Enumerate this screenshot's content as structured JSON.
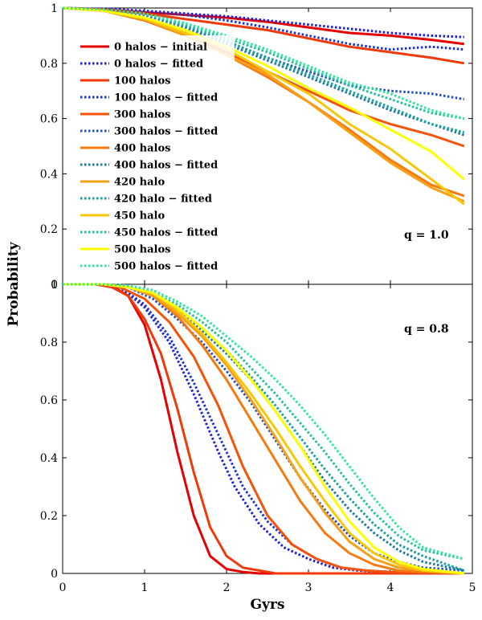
{
  "chart_data": [
    {
      "type": "line",
      "panel": "top",
      "annotation": "q = 1.0",
      "ylabel": "Probability",
      "xlim": [
        0,
        5
      ],
      "ylim": [
        0,
        1
      ],
      "yticks": [
        "0",
        "0.2",
        "0.4",
        "0.6",
        "0.8",
        "1"
      ],
      "grid": false,
      "legend": "top-left",
      "series": [
        {
          "name": "0 halos  −  initial",
          "color": "#e60000",
          "style": "solid",
          "x": [
            0,
            0.5,
            1,
            1.5,
            2,
            2.5,
            3,
            3.5,
            4,
            4.5,
            4.9
          ],
          "y": [
            1,
            0.995,
            0.985,
            0.975,
            0.965,
            0.95,
            0.93,
            0.91,
            0.9,
            0.885,
            0.87
          ]
        },
        {
          "name": "0 halos  −  fitted",
          "color": "#1f1fd6",
          "style": "dotted",
          "x": [
            0,
            0.5,
            1,
            1.5,
            2,
            2.5,
            3,
            3.5,
            4,
            4.5,
            4.9
          ],
          "y": [
            1,
            0.997,
            0.99,
            0.98,
            0.97,
            0.955,
            0.94,
            0.925,
            0.91,
            0.9,
            0.895
          ]
        },
        {
          "name": "100 halos",
          "color": "#f03a0a",
          "style": "solid",
          "x": [
            0,
            0.5,
            1,
            1.5,
            2,
            2.5,
            3,
            3.5,
            4,
            4.5,
            4.9
          ],
          "y": [
            1,
            0.995,
            0.98,
            0.96,
            0.94,
            0.92,
            0.89,
            0.86,
            0.84,
            0.82,
            0.8
          ]
        },
        {
          "name": "100 halos  −  fitted",
          "color": "#1a33d0",
          "style": "dotted",
          "x": [
            0,
            0.5,
            1,
            1.5,
            2,
            2.5,
            3,
            3.5,
            4,
            4.5,
            4.9
          ],
          "y": [
            1,
            0.997,
            0.99,
            0.975,
            0.955,
            0.93,
            0.9,
            0.87,
            0.85,
            0.86,
            0.85
          ]
        },
        {
          "name": "300 halos",
          "color": "#f5520a",
          "style": "solid",
          "x": [
            0,
            0.5,
            1,
            1.5,
            2,
            2.5,
            3,
            3.5,
            4,
            4.5,
            4.9
          ],
          "y": [
            1,
            0.99,
            0.96,
            0.9,
            0.84,
            0.77,
            0.7,
            0.63,
            0.58,
            0.54,
            0.5
          ]
        },
        {
          "name": "300 halos  −  fitted",
          "color": "#2050c8",
          "style": "dotted",
          "x": [
            0,
            0.5,
            1,
            1.5,
            2,
            2.5,
            3,
            3.5,
            4,
            4.5,
            4.9
          ],
          "y": [
            1,
            0.995,
            0.975,
            0.93,
            0.88,
            0.82,
            0.77,
            0.72,
            0.7,
            0.69,
            0.67
          ]
        },
        {
          "name": "400 halos",
          "color": "#f57a10",
          "style": "solid",
          "x": [
            0,
            0.5,
            1,
            1.5,
            2,
            2.5,
            3,
            3.5,
            4,
            4.5,
            4.9
          ],
          "y": [
            1,
            0.99,
            0.955,
            0.9,
            0.83,
            0.75,
            0.66,
            0.56,
            0.45,
            0.36,
            0.32
          ]
        },
        {
          "name": "400 halos  −  fitted",
          "color": "#1a7aa0",
          "style": "dotted",
          "x": [
            0,
            0.5,
            1,
            1.5,
            2,
            2.5,
            3,
            3.5,
            4,
            4.5,
            4.9
          ],
          "y": [
            1,
            0.995,
            0.975,
            0.93,
            0.87,
            0.81,
            0.75,
            0.69,
            0.63,
            0.58,
            0.54
          ]
        },
        {
          "name": "420 halo",
          "color": "#f7a015",
          "style": "solid",
          "x": [
            0,
            0.5,
            1,
            1.5,
            2,
            2.5,
            3,
            3.5,
            4,
            4.5,
            4.9
          ],
          "y": [
            1,
            0.99,
            0.96,
            0.9,
            0.83,
            0.76,
            0.66,
            0.55,
            0.44,
            0.35,
            0.3
          ]
        },
        {
          "name": "420 halo  −  fitted",
          "color": "#13a0a0",
          "style": "dotted",
          "x": [
            0,
            0.5,
            1,
            1.5,
            2,
            2.5,
            3,
            3.5,
            4,
            4.5,
            4.9
          ],
          "y": [
            1,
            0.995,
            0.975,
            0.935,
            0.88,
            0.82,
            0.76,
            0.7,
            0.64,
            0.58,
            0.55
          ]
        },
        {
          "name": "450 halo",
          "color": "#f7c80a",
          "style": "solid",
          "x": [
            0,
            0.5,
            1,
            1.5,
            2,
            2.5,
            3,
            3.5,
            4,
            4.5,
            4.9
          ],
          "y": [
            1,
            0.99,
            0.96,
            0.91,
            0.85,
            0.77,
            0.69,
            0.58,
            0.49,
            0.38,
            0.29
          ]
        },
        {
          "name": "450 halos  −  fitted",
          "color": "#20c0a0",
          "style": "dotted",
          "x": [
            0,
            0.5,
            1,
            1.5,
            2,
            2.5,
            3,
            3.5,
            4,
            4.5,
            4.9
          ],
          "y": [
            1,
            0.995,
            0.98,
            0.94,
            0.89,
            0.84,
            0.78,
            0.72,
            0.67,
            0.62,
            0.6
          ]
        },
        {
          "name": "500 halos",
          "color": "#ffff00",
          "style": "solid",
          "x": [
            0,
            0.5,
            1,
            1.5,
            2,
            2.5,
            3,
            3.5,
            4,
            4.5,
            4.9
          ],
          "y": [
            1,
            0.99,
            0.965,
            0.92,
            0.86,
            0.79,
            0.71,
            0.64,
            0.56,
            0.48,
            0.38
          ]
        },
        {
          "name": "500 halos  −  fitted",
          "color": "#2ee89a",
          "style": "dotted",
          "x": [
            0,
            0.5,
            1,
            1.5,
            2,
            2.5,
            3,
            3.5,
            4,
            4.5,
            4.9
          ],
          "y": [
            1,
            0.995,
            0.98,
            0.945,
            0.9,
            0.85,
            0.79,
            0.73,
            0.69,
            0.63,
            0.6
          ]
        }
      ]
    },
    {
      "type": "line",
      "panel": "bottom",
      "annotation": "q = 0.8",
      "xlabel": "Gyrs",
      "ylabel": "Probability",
      "xlim": [
        0,
        5
      ],
      "ylim": [
        0,
        1
      ],
      "xticks": [
        "0",
        "1",
        "2",
        "3",
        "4",
        "5"
      ],
      "yticks": [
        "0",
        "0.2",
        "0.4",
        "0.6",
        "0.8",
        "1"
      ],
      "grid": false,
      "series": [
        {
          "name": "0 halos  −  initial",
          "color": "#e60000",
          "style": "solid",
          "x": [
            0,
            0.4,
            0.6,
            0.8,
            1,
            1.2,
            1.4,
            1.6,
            1.8,
            2,
            2.2,
            2.4,
            2.6,
            3,
            4,
            4.9
          ],
          "y": [
            1,
            1,
            0.995,
            0.96,
            0.86,
            0.67,
            0.42,
            0.2,
            0.06,
            0.015,
            0.005,
            0,
            0,
            0,
            0,
            0
          ]
        },
        {
          "name": "0 halos  −  fitted",
          "color": "#1f1fd6",
          "style": "dotted",
          "x": [
            0,
            0.5,
            0.7,
            1,
            1.3,
            1.6,
            1.9,
            2.1,
            2.4,
            2.7,
            3,
            3.3,
            3.6,
            4,
            4.9
          ],
          "y": [
            1,
            1,
            0.99,
            0.92,
            0.8,
            0.62,
            0.42,
            0.3,
            0.17,
            0.09,
            0.05,
            0.02,
            0.01,
            0.005,
            0
          ]
        },
        {
          "name": "100 halos",
          "color": "#f03a0a",
          "style": "solid",
          "x": [
            0,
            0.4,
            0.6,
            0.8,
            1,
            1.2,
            1.4,
            1.6,
            1.8,
            2,
            2.2,
            2.4,
            2.6,
            2.8,
            3,
            4,
            4.9
          ],
          "y": [
            1,
            1,
            0.99,
            0.96,
            0.88,
            0.76,
            0.57,
            0.35,
            0.16,
            0.06,
            0.02,
            0.01,
            0,
            0,
            0,
            0,
            0
          ]
        },
        {
          "name": "100 halos  −  fitted",
          "color": "#1a33d0",
          "style": "dotted",
          "x": [
            0,
            0.5,
            0.7,
            1,
            1.3,
            1.6,
            1.9,
            2.2,
            2.5,
            2.8,
            3.1,
            3.4,
            3.7,
            4,
            4.9
          ],
          "y": [
            1,
            1,
            0.99,
            0.93,
            0.82,
            0.66,
            0.48,
            0.3,
            0.18,
            0.1,
            0.05,
            0.02,
            0.01,
            0.005,
            0
          ]
        },
        {
          "name": "300 halos",
          "color": "#f5520a",
          "style": "solid",
          "x": [
            0,
            0.5,
            0.7,
            1,
            1.3,
            1.6,
            1.9,
            2.2,
            2.5,
            2.8,
            3.1,
            3.4,
            3.7,
            4,
            4.9
          ],
          "y": [
            1,
            1,
            0.99,
            0.95,
            0.87,
            0.75,
            0.58,
            0.37,
            0.2,
            0.1,
            0.05,
            0.02,
            0.01,
            0.005,
            0
          ]
        },
        {
          "name": "300 halos  −  fitted",
          "color": "#2050c8",
          "style": "dotted",
          "x": [
            0,
            0.5,
            0.8,
            1.1,
            1.4,
            1.7,
            2,
            2.3,
            2.6,
            2.9,
            3.2,
            3.5,
            3.8,
            4.1,
            4.4,
            4.9
          ],
          "y": [
            1,
            1,
            0.99,
            0.95,
            0.88,
            0.8,
            0.7,
            0.59,
            0.46,
            0.33,
            0.22,
            0.13,
            0.07,
            0.04,
            0.02,
            0.01
          ]
        },
        {
          "name": "400 halos",
          "color": "#f57a10",
          "style": "solid",
          "x": [
            0,
            0.5,
            0.8,
            1.1,
            1.4,
            1.7,
            2,
            2.3,
            2.6,
            2.9,
            3.2,
            3.5,
            3.8,
            4.1,
            4.4,
            4.9
          ],
          "y": [
            1,
            1,
            0.99,
            0.96,
            0.89,
            0.79,
            0.67,
            0.53,
            0.39,
            0.25,
            0.14,
            0.07,
            0.03,
            0.01,
            0.005,
            0
          ]
        },
        {
          "name": "400 halos  −  fitted",
          "color": "#1a7aa0",
          "style": "dotted",
          "x": [
            0,
            0.5,
            0.8,
            1.1,
            1.4,
            1.7,
            2,
            2.3,
            2.6,
            2.9,
            3.2,
            3.5,
            3.8,
            4.1,
            4.4,
            4.9
          ],
          "y": [
            1,
            1,
            0.99,
            0.96,
            0.91,
            0.84,
            0.76,
            0.67,
            0.56,
            0.44,
            0.32,
            0.22,
            0.14,
            0.08,
            0.04,
            0.01
          ]
        },
        {
          "name": "420 halo",
          "color": "#f7a015",
          "style": "solid",
          "x": [
            0,
            0.5,
            0.8,
            1.1,
            1.4,
            1.7,
            2,
            2.3,
            2.6,
            2.9,
            3.2,
            3.5,
            3.8,
            4.1,
            4.4,
            4.9
          ],
          "y": [
            1,
            1,
            0.99,
            0.96,
            0.9,
            0.82,
            0.72,
            0.6,
            0.47,
            0.33,
            0.21,
            0.11,
            0.05,
            0.02,
            0.01,
            0
          ]
        },
        {
          "name": "420 halo  −  fitted",
          "color": "#13a0a0",
          "style": "dotted",
          "x": [
            0,
            0.5,
            0.8,
            1.1,
            1.4,
            1.7,
            2,
            2.3,
            2.6,
            2.9,
            3.2,
            3.5,
            3.8,
            4.1,
            4.4,
            4.9
          ],
          "y": [
            1,
            1,
            0.99,
            0.97,
            0.92,
            0.85,
            0.77,
            0.68,
            0.58,
            0.47,
            0.36,
            0.26,
            0.17,
            0.1,
            0.06,
            0.01
          ]
        },
        {
          "name": "450 halo",
          "color": "#f7c80a",
          "style": "solid",
          "x": [
            0,
            0.5,
            0.8,
            1.1,
            1.4,
            1.7,
            2,
            2.3,
            2.6,
            2.9,
            3.2,
            3.5,
            3.8,
            4.1,
            4.4,
            4.9
          ],
          "y": [
            1,
            1,
            0.99,
            0.97,
            0.91,
            0.83,
            0.73,
            0.62,
            0.5,
            0.37,
            0.25,
            0.14,
            0.07,
            0.03,
            0.01,
            0
          ]
        },
        {
          "name": "450 halos  −  fitted",
          "color": "#20c0a0",
          "style": "dotted",
          "x": [
            0,
            0.5,
            0.8,
            1.1,
            1.4,
            1.7,
            2,
            2.3,
            2.6,
            2.9,
            3.2,
            3.5,
            3.8,
            4.1,
            4.4,
            4.9
          ],
          "y": [
            1,
            1,
            0.995,
            0.97,
            0.93,
            0.87,
            0.8,
            0.71,
            0.62,
            0.52,
            0.42,
            0.31,
            0.21,
            0.13,
            0.08,
            0.05
          ]
        },
        {
          "name": "500 halos",
          "color": "#ffff00",
          "style": "solid",
          "x": [
            0,
            0.5,
            0.8,
            1.1,
            1.4,
            1.7,
            2,
            2.3,
            2.6,
            2.9,
            3.2,
            3.5,
            3.8,
            4.1,
            4.4,
            4.9
          ],
          "y": [
            1,
            1,
            0.99,
            0.97,
            0.92,
            0.85,
            0.77,
            0.67,
            0.56,
            0.44,
            0.3,
            0.18,
            0.09,
            0.04,
            0.015,
            0
          ]
        },
        {
          "name": "500 halos  −  fitted",
          "color": "#2ee89a",
          "style": "dotted",
          "x": [
            0,
            0.5,
            0.8,
            1.1,
            1.4,
            1.7,
            2,
            2.3,
            2.6,
            2.9,
            3.2,
            3.5,
            3.8,
            4.1,
            4.4,
            4.9
          ],
          "y": [
            1,
            1,
            0.995,
            0.98,
            0.94,
            0.89,
            0.82,
            0.75,
            0.67,
            0.58,
            0.48,
            0.37,
            0.26,
            0.16,
            0.09,
            0.05
          ]
        }
      ]
    }
  ]
}
